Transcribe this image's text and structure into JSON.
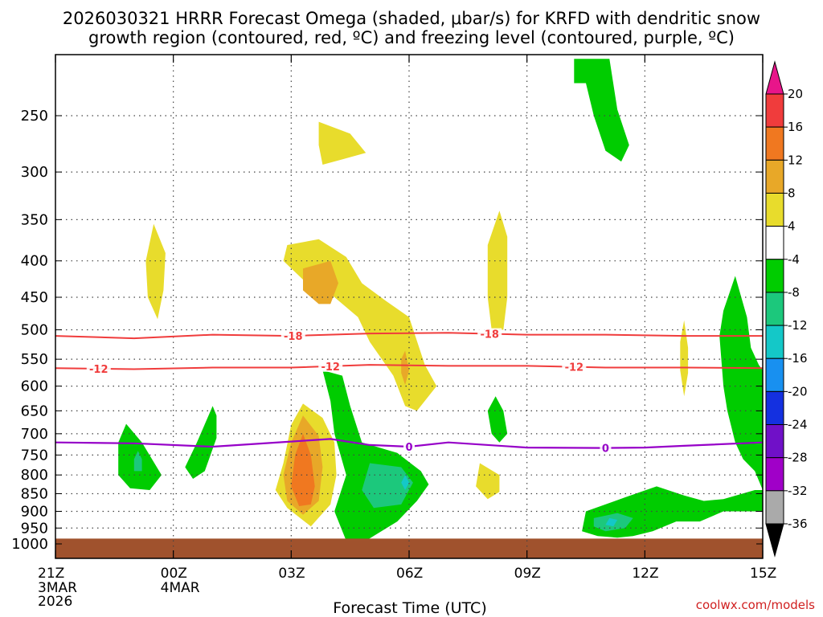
{
  "chart_data": {
    "type": "heatmap",
    "title": [
      "2026030321 HRRR Forecast Omega (shaded, μbar/s) for KRFD with dendritic snow",
      "growth region (contoured, red, ºC) and freezing level (contoured, purple, ºC)"
    ],
    "xlabel": "Forecast Time (UTC)",
    "ylabel": "",
    "x_hours": [
      0,
      18
    ],
    "y_pressure_range": [
      1000,
      200
    ],
    "x_ticks": [
      {
        "hour": 0,
        "label": "21Z",
        "sub": [
          "3MAR",
          "2026"
        ]
      },
      {
        "hour": 3,
        "label": "00Z",
        "sub": [
          "4MAR"
        ]
      },
      {
        "hour": 6,
        "label": "03Z",
        "sub": []
      },
      {
        "hour": 9,
        "label": "06Z",
        "sub": []
      },
      {
        "hour": 12,
        "label": "09Z",
        "sub": []
      },
      {
        "hour": 15,
        "label": "12Z",
        "sub": []
      },
      {
        "hour": 18,
        "label": "15Z",
        "sub": []
      }
    ],
    "y_ticks": [
      250,
      300,
      350,
      400,
      450,
      500,
      550,
      600,
      650,
      700,
      750,
      800,
      850,
      900,
      950,
      1000
    ],
    "colorbar": {
      "labels": [
        "20",
        "16",
        "12",
        "8",
        "4",
        "-4",
        "-8",
        "-12",
        "-16",
        "-20",
        "-24",
        "-28",
        "-32",
        "-36"
      ],
      "colors": [
        "#e8158a",
        "#f03c3c",
        "#f07820",
        "#e8a828",
        "#e8dc2c",
        "#ffffff",
        "#00cc00",
        "#1cc87c",
        "#14c8c8",
        "#1890f0",
        "#1430e0",
        "#7010c8",
        "#a000c8",
        "#aaaaaa",
        "#000000"
      ]
    },
    "contours": [
      {
        "name": "dgz-minus18",
        "kind": "dendritic",
        "value": -18,
        "label": "-18",
        "color": "#f03c3c",
        "points": [
          [
            0,
            510
          ],
          [
            2,
            514
          ],
          [
            4,
            508
          ],
          [
            6,
            510
          ],
          [
            8,
            506
          ],
          [
            10,
            505
          ],
          [
            12,
            508
          ],
          [
            14,
            508
          ],
          [
            16,
            510
          ],
          [
            18,
            510
          ]
        ],
        "label_hours": [
          6.05,
          11.05
        ]
      },
      {
        "name": "dgz-minus12",
        "kind": "dendritic",
        "value": -12,
        "label": "-12",
        "color": "#f03c3c",
        "points": [
          [
            0,
            566
          ],
          [
            2,
            568
          ],
          [
            4,
            565
          ],
          [
            6,
            565
          ],
          [
            8,
            560
          ],
          [
            10,
            562
          ],
          [
            12,
            562
          ],
          [
            14,
            565
          ],
          [
            16,
            565
          ],
          [
            18,
            566
          ]
        ],
        "label_hours": [
          1.1,
          7.0,
          13.2
        ]
      },
      {
        "name": "freezing-level",
        "kind": "freezing",
        "value": 0,
        "label": "0",
        "color": "#9600c8",
        "points": [
          [
            0,
            720
          ],
          [
            2,
            722
          ],
          [
            4,
            730
          ],
          [
            6,
            718
          ],
          [
            7,
            712
          ],
          [
            8,
            726
          ],
          [
            9,
            730
          ],
          [
            10,
            720
          ],
          [
            12,
            732
          ],
          [
            14,
            733
          ],
          [
            15,
            732
          ],
          [
            16,
            728
          ],
          [
            18,
            720
          ]
        ],
        "label_hours": [
          9.0,
          14.0
        ]
      }
    ],
    "regions": [
      {
        "name": "omega-plus4-0050-400",
        "value": "4",
        "color": "#e8dc2c",
        "points": [
          [
            2.5,
            355
          ],
          [
            2.8,
            390
          ],
          [
            2.75,
            440
          ],
          [
            2.6,
            483
          ],
          [
            2.35,
            450
          ],
          [
            2.3,
            400
          ]
        ]
      },
      {
        "name": "omega-plus4-0430-280",
        "value": "4",
        "color": "#e8dc2c",
        "points": [
          [
            6.7,
            255
          ],
          [
            7.5,
            265
          ],
          [
            7.9,
            282
          ],
          [
            7.3,
            288
          ],
          [
            6.8,
            293
          ],
          [
            6.7,
            275
          ]
        ]
      },
      {
        "name": "omega-plus4-0300-450",
        "value": "4",
        "color": "#e8dc2c",
        "points": [
          [
            5.9,
            380
          ],
          [
            6.7,
            373
          ],
          [
            7.4,
            395
          ],
          [
            7.8,
            430
          ],
          [
            8.4,
            455
          ],
          [
            9,
            480
          ],
          [
            9.4,
            560
          ],
          [
            9.7,
            600
          ],
          [
            9.2,
            650
          ],
          [
            8.9,
            640
          ],
          [
            8.6,
            580
          ],
          [
            8.0,
            520
          ],
          [
            7.7,
            480
          ],
          [
            7.0,
            445
          ],
          [
            6.3,
            425
          ],
          [
            5.8,
            400
          ]
        ]
      },
      {
        "name": "omega-plus8-0310-420",
        "value": "8",
        "color": "#e8a828",
        "points": [
          [
            6.3,
            410
          ],
          [
            7.0,
            400
          ],
          [
            7.2,
            430
          ],
          [
            7.0,
            460
          ],
          [
            6.7,
            460
          ],
          [
            6.3,
            440
          ]
        ]
      },
      {
        "name": "omega-plus8-0500-555",
        "value": "8",
        "color": "#e8a828",
        "points": [
          [
            8.9,
            535
          ],
          [
            9.0,
            570
          ],
          [
            8.9,
            598
          ],
          [
            8.8,
            575
          ],
          [
            8.8,
            550
          ]
        ]
      },
      {
        "name": "omega-plus4-0800-420",
        "value": "4",
        "color": "#e8dc2c",
        "points": [
          [
            11.3,
            340
          ],
          [
            11.5,
            370
          ],
          [
            11.5,
            450
          ],
          [
            11.4,
            500
          ],
          [
            11.1,
            500
          ],
          [
            11.0,
            450
          ],
          [
            11.0,
            380
          ]
        ]
      },
      {
        "name": "omega-plus4-0300-780",
        "value": "4",
        "color": "#e8dc2c",
        "points": [
          [
            6.3,
            635
          ],
          [
            6.8,
            665
          ],
          [
            7.1,
            720
          ],
          [
            7.15,
            800
          ],
          [
            7.0,
            880
          ],
          [
            6.5,
            945
          ],
          [
            5.9,
            890
          ],
          [
            5.6,
            840
          ],
          [
            5.8,
            770
          ],
          [
            6.0,
            680
          ]
        ]
      },
      {
        "name": "omega-plus8-0300-780",
        "value": "8",
        "color": "#e8a828",
        "points": [
          [
            6.3,
            660
          ],
          [
            6.7,
            705
          ],
          [
            6.8,
            780
          ],
          [
            6.7,
            870
          ],
          [
            6.3,
            910
          ],
          [
            5.9,
            870
          ],
          [
            5.8,
            800
          ],
          [
            6.0,
            720
          ]
        ]
      },
      {
        "name": "omega-plus12-0300-780",
        "value": "12",
        "color": "#f07820",
        "points": [
          [
            6.3,
            700
          ],
          [
            6.5,
            750
          ],
          [
            6.6,
            830
          ],
          [
            6.5,
            880
          ],
          [
            6.2,
            885
          ],
          [
            6.0,
            830
          ],
          [
            6.1,
            750
          ]
        ]
      },
      {
        "name": "omega-plus4-0700-825",
        "value": "4",
        "color": "#e8dc2c",
        "points": [
          [
            10.8,
            770
          ],
          [
            11.3,
            800
          ],
          [
            11.3,
            845
          ],
          [
            11.0,
            865
          ],
          [
            10.7,
            830
          ]
        ]
      },
      {
        "name": "omega-plus4-1300-550",
        "value": "4",
        "color": "#e8dc2c",
        "points": [
          [
            16.0,
            485
          ],
          [
            16.1,
            530
          ],
          [
            16.1,
            575
          ],
          [
            16.0,
            620
          ],
          [
            15.9,
            570
          ],
          [
            15.9,
            520
          ]
        ]
      },
      {
        "name": "omega-minus4-2230-750",
        "value": "-4",
        "color": "#00cc00",
        "points": [
          [
            1.8,
            678
          ],
          [
            2.2,
            720
          ],
          [
            2.7,
            800
          ],
          [
            2.4,
            840
          ],
          [
            1.9,
            835
          ],
          [
            1.6,
            800
          ],
          [
            1.6,
            720
          ]
        ]
      },
      {
        "name": "omega-minus8-2230-760",
        "value": "-8",
        "color": "#1cc87c",
        "points": [
          [
            2.1,
            740
          ],
          [
            2.2,
            760
          ],
          [
            2.2,
            790
          ],
          [
            2.0,
            790
          ],
          [
            2.0,
            760
          ]
        ]
      },
      {
        "name": "omega-minus4-0100-730",
        "value": "-4",
        "color": "#00cc00",
        "points": [
          [
            4.0,
            640
          ],
          [
            4.1,
            660
          ],
          [
            4.1,
            710
          ],
          [
            3.8,
            790
          ],
          [
            3.5,
            810
          ],
          [
            3.3,
            780
          ],
          [
            3.6,
            720
          ]
        ]
      },
      {
        "name": "omega-minus4-0430-800",
        "value": "-4",
        "color": "#00cc00",
        "points": [
          [
            6.8,
            570
          ],
          [
            7.3,
            580
          ],
          [
            7.5,
            640
          ],
          [
            7.8,
            720
          ],
          [
            8.7,
            745
          ],
          [
            9.3,
            790
          ],
          [
            9.5,
            825
          ],
          [
            9.2,
            870
          ],
          [
            8.7,
            930
          ],
          [
            7.9,
            990
          ],
          [
            7.4,
            990
          ],
          [
            7.1,
            900
          ],
          [
            7.4,
            800
          ],
          [
            7.1,
            700
          ],
          [
            7.0,
            630
          ]
        ]
      },
      {
        "name": "omega-minus8-0500-820",
        "value": "-8",
        "color": "#1cc87c",
        "points": [
          [
            8.0,
            770
          ],
          [
            8.8,
            780
          ],
          [
            9.1,
            820
          ],
          [
            8.8,
            880
          ],
          [
            8.1,
            890
          ],
          [
            7.8,
            840
          ]
        ]
      },
      {
        "name": "omega-minus12-0500-820",
        "value": "-12",
        "color": "#14c8c8",
        "points": [
          [
            8.9,
            800
          ],
          [
            9.0,
            820
          ],
          [
            8.9,
            840
          ],
          [
            8.8,
            820
          ]
        ]
      },
      {
        "name": "omega-minus4-0800-660",
        "value": "-4",
        "color": "#00cc00",
        "points": [
          [
            11.2,
            620
          ],
          [
            11.4,
            650
          ],
          [
            11.5,
            700
          ],
          [
            11.3,
            720
          ],
          [
            11.1,
            700
          ],
          [
            11.0,
            650
          ]
        ]
      },
      {
        "name": "omega-minus4-1000-250",
        "value": "-4",
        "color": "#00cc00",
        "points": [
          [
            13.2,
            208
          ],
          [
            14.1,
            208
          ],
          [
            14.3,
            245
          ],
          [
            14.6,
            275
          ],
          [
            14.4,
            290
          ],
          [
            14.0,
            280
          ],
          [
            13.7,
            250
          ],
          [
            13.5,
            225
          ],
          [
            13.2,
            225
          ]
        ]
      },
      {
        "name": "omega-minus4-1200-900",
        "value": "-4",
        "color": "#00cc00",
        "points": [
          [
            13.5,
            900
          ],
          [
            14.5,
            860
          ],
          [
            15.3,
            830
          ],
          [
            16.0,
            855
          ],
          [
            16.5,
            870
          ],
          [
            17.0,
            865
          ],
          [
            17.8,
            840
          ],
          [
            18.0,
            840
          ],
          [
            18.0,
            900
          ],
          [
            17.0,
            900
          ],
          [
            16.4,
            930
          ],
          [
            15.8,
            930
          ],
          [
            15.2,
            960
          ],
          [
            14.7,
            975
          ],
          [
            14.3,
            980
          ],
          [
            13.8,
            975
          ],
          [
            13.4,
            960
          ]
        ]
      },
      {
        "name": "omega-minus8-1100-920",
        "value": "-8",
        "color": "#1cc87c",
        "points": [
          [
            13.7,
            920
          ],
          [
            14.3,
            905
          ],
          [
            14.7,
            920
          ],
          [
            14.5,
            950
          ],
          [
            14.0,
            960
          ],
          [
            13.7,
            945
          ]
        ]
      },
      {
        "name": "omega-minus12-1100-930",
        "value": "-12",
        "color": "#14c8c8",
        "points": [
          [
            14.1,
            920
          ],
          [
            14.3,
            925
          ],
          [
            14.2,
            945
          ],
          [
            14.0,
            940
          ]
        ]
      },
      {
        "name": "omega-minus4-1430-600",
        "value": "-4",
        "color": "#00cc00",
        "points": [
          [
            17.3,
            420
          ],
          [
            17.6,
            480
          ],
          [
            17.7,
            530
          ],
          [
            17.9,
            560
          ],
          [
            18.0,
            570
          ],
          [
            18.0,
            840
          ],
          [
            17.8,
            790
          ],
          [
            17.5,
            760
          ],
          [
            17.3,
            720
          ],
          [
            17.1,
            650
          ],
          [
            17.0,
            600
          ],
          [
            16.9,
            510
          ],
          [
            17.0,
            470
          ]
        ]
      }
    ],
    "ground_pressure": 983,
    "ground_color": "#a0522d"
  },
  "footer": {
    "source": "coolwx.com/models"
  }
}
